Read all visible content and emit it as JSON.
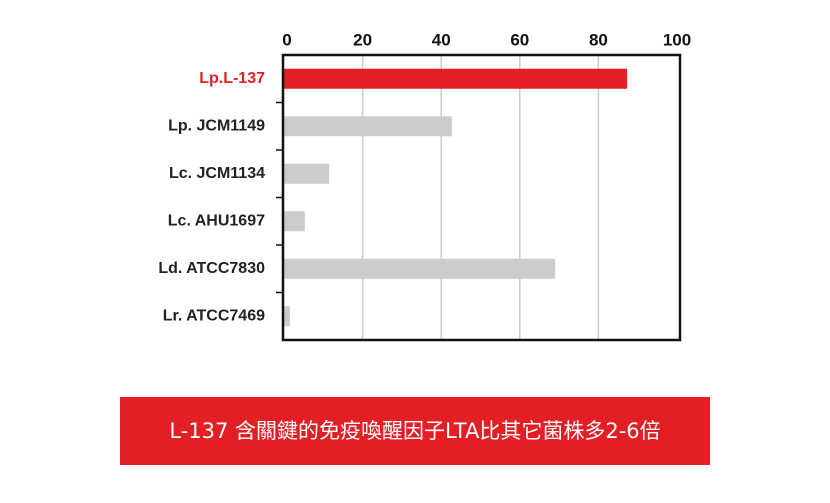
{
  "chart_data": {
    "type": "hbar",
    "categories": [
      "Lp.L-137",
      "Lp. JCM1149",
      "Lc. JCM1134",
      "Lc. AHU1697",
      "Ld. ATCC7830",
      "Lr. ATCC7469"
    ],
    "values": [
      87.3,
      42.7,
      11.5,
      5.3,
      69,
      1.5
    ],
    "colors": [
      "#e31e24",
      "#cccccc",
      "#cccccc",
      "#cccccc",
      "#cccccc",
      "#cccccc"
    ],
    "label_colors": [
      "#e31e24",
      "#222222",
      "#222222",
      "#222222",
      "#222222",
      "#222222"
    ],
    "xlim": [
      0,
      100
    ],
    "xticks": [
      0,
      20,
      40,
      60,
      80,
      100
    ],
    "grid": true
  },
  "banner": {
    "text": "L-137 含關鍵的免疫喚醒因子LTA比其它菌株多2-6倍"
  }
}
